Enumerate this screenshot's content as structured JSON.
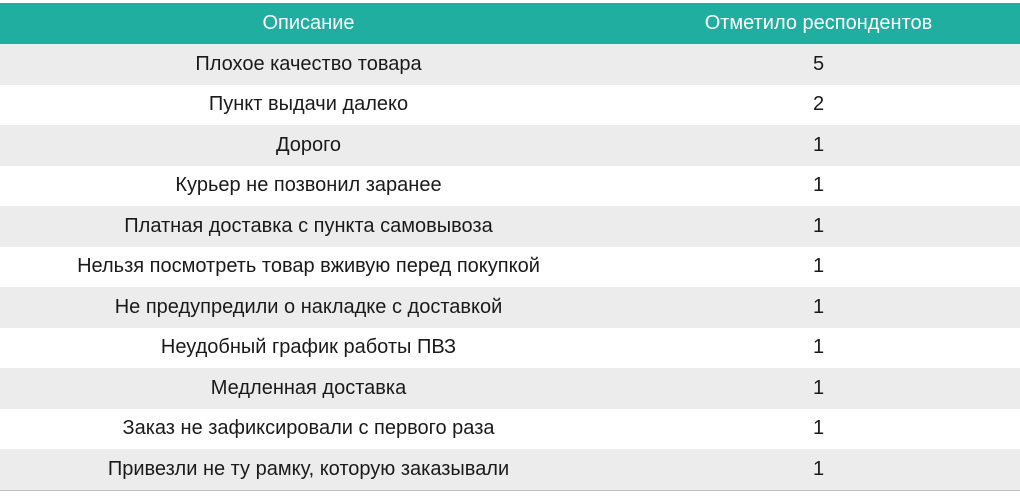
{
  "chart_data": {
    "type": "table",
    "columns": [
      "Описание",
      "Отметило респондентов"
    ],
    "rows": [
      [
        "Плохое качество товара",
        5
      ],
      [
        "Пункт выдачи далеко",
        2
      ],
      [
        "Дорого",
        1
      ],
      [
        "Курьер не позвонил заранее",
        1
      ],
      [
        "Платная доставка с пункта самовывоза",
        1
      ],
      [
        "Нельзя посмотреть товар вживую перед покупкой",
        1
      ],
      [
        "Не предупредили о накладке с доставкой",
        1
      ],
      [
        "Неудобный график работы ПВЗ",
        1
      ],
      [
        "Медленная доставка",
        1
      ],
      [
        "Заказ не зафиксировали с первого раза",
        1
      ],
      [
        "Привезли не ту рамку, которую заказывали",
        1
      ]
    ]
  },
  "colors": {
    "header_bg": "#1fae9f",
    "row_alt_bg": "#ececec"
  }
}
